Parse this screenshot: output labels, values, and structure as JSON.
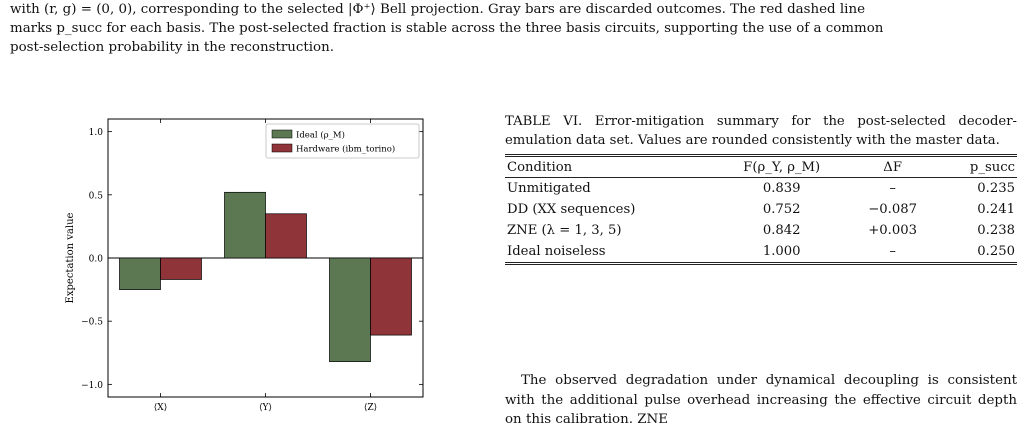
{
  "caption": {
    "line1": "with (r, g) = (0, 0), corresponding to the selected |Φ⁺⟩ Bell projection. Gray bars are discarded outcomes. The red dashed line",
    "line2": "marks p_succ for each basis. The post-selected fraction is stable across the three basis circuits, supporting the use of a common",
    "line3": "post-selection probability in the reconstruction."
  },
  "chart_data": {
    "type": "bar",
    "categories": [
      "⟨X⟩",
      "⟨Y⟩",
      "⟨Z⟩"
    ],
    "series": [
      {
        "name": "Ideal (ρ_M)",
        "values": [
          -0.25,
          0.52,
          -0.82
        ],
        "color": "#5b7852"
      },
      {
        "name": "Hardware (ibm_torino)",
        "values": [
          -0.17,
          0.35,
          -0.61
        ],
        "color": "#8f3438"
      }
    ],
    "ylabel": "Expectation value",
    "xlabel": "",
    "ylim": [
      -1.1,
      1.1
    ],
    "yticks": [
      "−1.0",
      "−0.5",
      "0.0",
      "0.5",
      "1.0"
    ],
    "ytick_values": [
      -1.0,
      -0.5,
      0.0,
      0.5,
      1.0
    ],
    "legend_position": "top-right",
    "zero_line": true
  },
  "table": {
    "caption": "TABLE VI. Error-mitigation summary for the post-selected decoder-emulation data set. Values are rounded consistently with the master data.",
    "headers": [
      "Condition",
      "F(ρ_Y, ρ_M)",
      "ΔF",
      "p_succ"
    ],
    "rows": [
      [
        "Unmitigated",
        "0.839",
        "–",
        "0.235"
      ],
      [
        "DD (XX sequences)",
        "0.752",
        "−0.087",
        "0.241"
      ],
      [
        "ZNE (λ = 1, 3, 5)",
        "0.842",
        "+0.003",
        "0.238"
      ],
      [
        "Ideal noiseless",
        "1.000",
        "–",
        "0.250"
      ]
    ]
  },
  "body": {
    "paragraph": "The observed degradation under dynamical decoupling is consistent with the additional pulse overhead increasing the effective circuit depth on this calibration. ZNE"
  }
}
